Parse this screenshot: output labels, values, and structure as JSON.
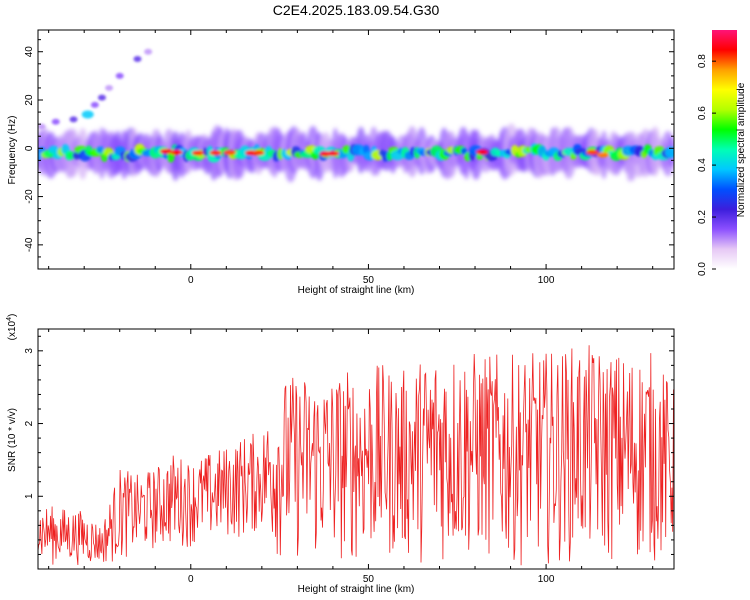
{
  "title": "C2E4.2025.183.09.54.G30",
  "chart_data": [
    {
      "type": "heatmap",
      "xlabel": "Height of straight line (km)",
      "ylabel": "Frequency (Hz)",
      "xlim": [
        -43,
        136
      ],
      "ylim": [
        -50,
        49
      ],
      "xticks": [
        0,
        50,
        100
      ],
      "yticks": [
        -40,
        -20,
        0,
        20,
        40
      ],
      "colorbar": {
        "label": "Normalized spectral amplitude",
        "range": [
          0.0,
          0.92
        ],
        "ticks": [
          0.0,
          0.2,
          0.4,
          0.6,
          0.8
        ],
        "colors": [
          "#ffffff",
          "#e6c8f5",
          "#8c50ff",
          "#3c1edc",
          "#0050ff",
          "#00c8ff",
          "#00ffb4",
          "#00ff00",
          "#b4ff00",
          "#ffff00",
          "#ffa000",
          "#ff0000",
          "#ff1478"
        ]
      },
      "band": {
        "center_hz": -2,
        "half_width_hz": 4,
        "x_start": -43,
        "x_end": 136,
        "strong_spots_x": [
          -7,
          -4,
          2,
          7,
          11,
          17,
          19,
          38,
          40,
          82,
          113,
          116
        ]
      },
      "streak": {
        "points": [
          [
            -42,
            9
          ],
          [
            -38,
            11
          ],
          [
            -33,
            12
          ],
          [
            -29,
            14
          ],
          [
            -27,
            18
          ],
          [
            -25,
            21
          ],
          [
            -23,
            25
          ],
          [
            -20,
            30
          ],
          [
            -15,
            37
          ],
          [
            -12,
            40
          ]
        ],
        "peak_x": -29
      }
    },
    {
      "type": "line",
      "xlabel": "Height of straight line (km)",
      "ylabel": "SNR (10 * v/v)",
      "scale_note": "(x10",
      "scale_exp": "4",
      "xlim": [
        -43,
        136
      ],
      "ylim": [
        0,
        3.3
      ],
      "xticks": [
        0,
        50,
        100
      ],
      "yticks": [
        1,
        2,
        3
      ],
      "line_color": "#ee2222",
      "envelope": {
        "x": [
          -43,
          -30,
          -25,
          -20,
          -15,
          -10,
          -5,
          0,
          5,
          10,
          15,
          20,
          25,
          30,
          40,
          50,
          60,
          70,
          80,
          90,
          100,
          110,
          120,
          130,
          136
        ],
        "max": [
          0.9,
          0.8,
          0.6,
          1.4,
          1.3,
          1.4,
          1.6,
          1.5,
          1.6,
          1.7,
          1.85,
          1.9,
          2.6,
          2.7,
          2.7,
          2.85,
          2.75,
          3.1,
          3.0,
          2.95,
          3.0,
          3.1,
          3.0,
          3.0,
          2.5
        ],
        "min": [
          0.05,
          0.05,
          0.05,
          0.1,
          0.2,
          0.25,
          0.3,
          0.3,
          0.35,
          0.4,
          0.4,
          0.5,
          0.1,
          0.1,
          0.05,
          0.1,
          0.1,
          0.05,
          0.1,
          0.05,
          0.05,
          0.1,
          0.05,
          0.05,
          0.1
        ]
      }
    }
  ]
}
